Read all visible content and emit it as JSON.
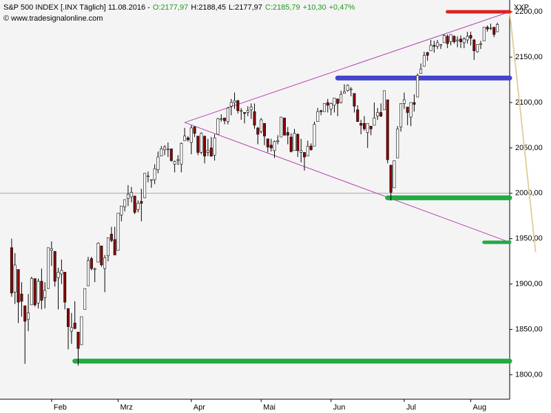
{
  "chart_data": {
    "type": "candlestick",
    "title": "S&P 500 INDEX [.INX  Täglich]",
    "date": "11.08.2016",
    "separator": "-",
    "quote": [
      {
        "text": "O:2177,97",
        "color": "#1a9a1a"
      },
      {
        "text": "H:2188,45",
        "color": "#000000"
      },
      {
        "text": "L:2177,97",
        "color": "#000000"
      },
      {
        "text": "C:2185,79",
        "color": "#1a9a1a"
      },
      {
        "text": "+10,30",
        "color": "#1a9a1a"
      },
      {
        "text": "+0,47%",
        "color": "#1a9a1a"
      }
    ],
    "source": "© www.tradesignalonline.com",
    "corner_label": "XXP",
    "up_color": "#ffffff",
    "down_color": "#8b0000",
    "xlim": [
      -3.5,
      149.7
    ],
    "ylim": [
      1773,
      2213
    ],
    "xticks": [
      {
        "value": 12,
        "label": "Feb"
      },
      {
        "value": 32,
        "label": "Mrz"
      },
      {
        "value": 54,
        "label": "Apr"
      },
      {
        "value": 75,
        "label": "Mai"
      },
      {
        "value": 96,
        "label": "Jun"
      },
      {
        "value": 118,
        "label": "Jul"
      },
      {
        "value": 138,
        "label": "Aug"
      }
    ],
    "yticks": [
      {
        "value": 1800,
        "label": "1800,00"
      },
      {
        "value": 1850,
        "label": "1850,00"
      },
      {
        "value": 1900,
        "label": "1900,00"
      },
      {
        "value": 1950,
        "label": "1950,00"
      },
      {
        "value": 2000,
        "label": "2000,00"
      },
      {
        "value": 2050,
        "label": "2050,00"
      },
      {
        "value": 2100,
        "label": "2100,00"
      },
      {
        "value": 2150,
        "label": "2150,00"
      },
      {
        "value": 2200,
        "label": "2200,00"
      }
    ],
    "ohlc": [
      [
        1940,
        1950,
        1886,
        1890
      ],
      [
        1891,
        1934,
        1878,
        1921
      ],
      [
        1916,
        1916,
        1857,
        1880
      ],
      [
        1889,
        1902,
        1864,
        1881
      ],
      [
        1876,
        1876,
        1812,
        1859
      ],
      [
        1861,
        1889,
        1848,
        1868
      ],
      [
        1877,
        1908,
        1877,
        1906
      ],
      [
        1906,
        1906,
        1875,
        1877
      ],
      [
        1879,
        1906,
        1873,
        1903
      ],
      [
        1903,
        1917,
        1872,
        1882
      ],
      [
        1885,
        1902,
        1873,
        1893
      ],
      [
        1895,
        1940,
        1895,
        1940
      ],
      [
        1937,
        1947,
        1920,
        1939
      ],
      [
        1936,
        1936,
        1897,
        1903
      ],
      [
        1907,
        1918,
        1872,
        1913
      ],
      [
        1911,
        1927,
        1900,
        1915
      ],
      [
        1913,
        1913,
        1872,
        1880
      ],
      [
        1873,
        1873,
        1828,
        1853
      ],
      [
        1848,
        1868,
        1834,
        1852
      ],
      [
        1857,
        1881,
        1850,
        1851
      ],
      [
        1847,
        1847,
        1810,
        1829
      ],
      [
        1833,
        1864,
        1833,
        1864
      ],
      [
        1872,
        1895,
        1872,
        1895
      ],
      [
        1898,
        1930,
        1898,
        1926
      ],
      [
        1928,
        1930,
        1915,
        1917
      ],
      [
        1916,
        1918,
        1902,
        1917
      ],
      [
        1924,
        1946,
        1924,
        1945
      ],
      [
        1942,
        1942,
        1919,
        1921
      ],
      [
        1917,
        1932,
        1891,
        1929
      ],
      [
        1931,
        1951,
        1925,
        1951
      ],
      [
        1955,
        1963,
        1946,
        1948
      ],
      [
        1949,
        1963,
        1932,
        1932
      ],
      [
        1937,
        1978,
        1937,
        1978
      ],
      [
        1976,
        1986,
        1969,
        1986
      ],
      [
        1985,
        1993,
        1980,
        1993
      ],
      [
        1994,
        2009,
        1986,
        1999
      ],
      [
        1996,
        2007,
        1990,
        2001
      ],
      [
        1997,
        1997,
        1977,
        1979
      ],
      [
        1982,
        1992,
        1979,
        1989
      ],
      [
        1991,
        2005,
        1969,
        1989
      ],
      [
        1995,
        2022,
        1995,
        2022
      ],
      [
        2019,
        2024,
        2012,
        2019
      ],
      [
        2015,
        2015,
        2006,
        2015
      ],
      [
        2015,
        2032,
        2010,
        2027
      ],
      [
        2026,
        2046,
        2022,
        2040
      ],
      [
        2041,
        2052,
        2041,
        2049
      ],
      [
        2048,
        2053,
        2042,
        2051
      ],
      [
        2048,
        2056,
        2040,
        2049
      ],
      [
        2049,
        2049,
        2035,
        2036
      ],
      [
        2032,
        2036,
        2023,
        2035
      ],
      [
        2037,
        2042,
        2031,
        2037
      ],
      [
        2032,
        2056,
        2023,
        2055
      ],
      [
        2058,
        2072,
        2058,
        2063
      ],
      [
        2061,
        2063,
        2057,
        2059
      ],
      [
        2056,
        2075,
        2043,
        2072
      ],
      [
        2073,
        2074,
        2062,
        2066
      ],
      [
        2063,
        2063,
        2042,
        2045
      ],
      [
        2045,
        2067,
        2043,
        2066
      ],
      [
        2063,
        2063,
        2033,
        2041
      ],
      [
        2045,
        2060,
        2041,
        2047
      ],
      [
        2050,
        2062,
        2040,
        2041
      ],
      [
        2042,
        2065,
        2036,
        2061
      ],
      [
        2065,
        2083,
        2065,
        2082
      ],
      [
        2082,
        2087,
        2079,
        2082
      ],
      [
        2083,
        2083,
        2076,
        2080
      ],
      [
        2079,
        2095,
        2076,
        2094
      ],
      [
        2096,
        2104,
        2086,
        2100
      ],
      [
        2100,
        2111,
        2093,
        2102
      ],
      [
        2102,
        2103,
        2088,
        2091
      ],
      [
        2091,
        2094,
        2081,
        2091
      ],
      [
        2089,
        2089,
        2077,
        2088
      ],
      [
        2089,
        2096,
        2085,
        2091
      ],
      [
        2092,
        2099,
        2082,
        2095
      ],
      [
        2090,
        2099,
        2071,
        2075
      ],
      [
        2072,
        2073,
        2054,
        2065
      ],
      [
        2068,
        2083,
        2066,
        2081
      ],
      [
        2077,
        2077,
        2053,
        2063
      ],
      [
        2060,
        2060,
        2045,
        2051
      ],
      [
        2053,
        2060,
        2046,
        2050
      ],
      [
        2047,
        2058,
        2039,
        2057
      ],
      [
        2057,
        2064,
        2054,
        2058
      ],
      [
        2062,
        2084,
        2062,
        2084
      ],
      [
        2083,
        2083,
        2064,
        2064
      ],
      [
        2067,
        2073,
        2054,
        2064
      ],
      [
        2062,
        2066,
        2045,
        2046
      ],
      [
        2047,
        2071,
        2047,
        2066
      ],
      [
        2065,
        2066,
        2040,
        2047
      ],
      [
        2045,
        2060,
        2034,
        2047
      ],
      [
        2045,
        2045,
        2025,
        2040
      ],
      [
        2041,
        2058,
        2041,
        2052
      ],
      [
        2052,
        2055,
        2047,
        2048
      ],
      [
        2052,
        2079,
        2052,
        2076
      ],
      [
        2079,
        2094,
        2079,
        2090
      ],
      [
        2091,
        2092,
        2086,
        2090
      ],
      [
        2090,
        2099,
        2090,
        2099
      ],
      [
        2100,
        2104,
        2089,
        2097
      ],
      [
        2093,
        2100,
        2086,
        2099
      ],
      [
        2097,
        2105,
        2089,
        2105
      ],
      [
        2104,
        2104,
        2085,
        2099
      ],
      [
        2100,
        2113,
        2099,
        2109
      ],
      [
        2110,
        2120,
        2110,
        2112
      ],
      [
        2113,
        2120,
        2112,
        2119
      ],
      [
        2115,
        2117,
        2107,
        2115
      ],
      [
        2110,
        2110,
        2089,
        2096
      ],
      [
        2092,
        2097,
        2079,
        2079
      ],
      [
        2077,
        2081,
        2065,
        2075
      ],
      [
        2077,
        2085,
        2069,
        2071
      ],
      [
        2067,
        2077,
        2050,
        2077
      ],
      [
        2074,
        2074,
        2064,
        2071
      ],
      [
        2075,
        2100,
        2075,
        2083
      ],
      [
        2085,
        2094,
        2081,
        2089
      ],
      [
        2089,
        2099,
        2084,
        2085
      ],
      [
        2092,
        2113,
        2092,
        2113
      ],
      [
        2103,
        2103,
        2033,
        2037
      ],
      [
        2031,
        2031,
        1992,
        2001
      ],
      [
        2006,
        2036,
        2006,
        2036
      ],
      [
        2039,
        2074,
        2039,
        2071
      ],
      [
        2073,
        2099,
        2068,
        2099
      ],
      [
        2099,
        2111,
        2093,
        2103
      ],
      [
        2095,
        2095,
        2075,
        2089
      ],
      [
        2084,
        2100,
        2074,
        2100
      ],
      [
        2100,
        2109,
        2090,
        2098
      ],
      [
        2106,
        2132,
        2106,
        2130
      ],
      [
        2132,
        2143,
        2132,
        2137
      ],
      [
        2140,
        2156,
        2140,
        2152
      ],
      [
        2155,
        2156,
        2146,
        2152
      ],
      [
        2157,
        2169,
        2157,
        2163
      ],
      [
        2163,
        2168,
        2155,
        2162
      ],
      [
        2162,
        2169,
        2159,
        2166
      ],
      [
        2163,
        2164,
        2159,
        2164
      ],
      [
        2166,
        2175,
        2166,
        2174
      ],
      [
        2173,
        2175,
        2160,
        2165
      ],
      [
        2167,
        2175,
        2163,
        2175
      ],
      [
        2173,
        2174,
        2165,
        2167
      ],
      [
        2168,
        2173,
        2161,
        2169
      ],
      [
        2170,
        2174,
        2160,
        2167
      ],
      [
        2166,
        2172,
        2160,
        2170
      ],
      [
        2169,
        2178,
        2165,
        2173
      ],
      [
        2174,
        2178,
        2163,
        2171
      ],
      [
        2169,
        2170,
        2147,
        2157
      ],
      [
        2156,
        2164,
        2155,
        2164
      ],
      [
        2164,
        2168,
        2159,
        2165
      ],
      [
        2168,
        2183,
        2168,
        2183
      ],
      [
        2183,
        2185,
        2178,
        2181
      ],
      [
        2182,
        2187,
        2180,
        2182
      ],
      [
        2183,
        2183,
        2172,
        2175
      ],
      [
        2178,
        2188,
        2178,
        2186
      ]
    ],
    "drawings": [
      {
        "color": "#9aa89a",
        "width": 1,
        "x": [
          -3.5,
          149.7
        ],
        "y": [
          2000,
          2000
        ]
      },
      {
        "color": "#b040b0",
        "width": 1,
        "x": [
          52,
          149.7
        ],
        "y": [
          2078,
          2200
        ]
      },
      {
        "color": "#b040b0",
        "width": 1,
        "x": [
          52,
          149.7
        ],
        "y": [
          2078,
          1946
        ]
      },
      {
        "color": "#e0d0a0",
        "width": 2,
        "x": [
          149.7,
          157.5
        ],
        "y": [
          2200,
          1935
        ]
      },
      {
        "color": "#dd2222",
        "width": 5,
        "x": [
          131,
          149.7
        ],
        "y": [
          2200,
          2200
        ]
      },
      {
        "color": "#4444cc",
        "width": 7,
        "x": [
          98,
          149.7
        ],
        "y": [
          2127,
          2127
        ]
      },
      {
        "color": "#22aa44",
        "width": 7,
        "x": [
          113,
          149.7
        ],
        "y": [
          1995,
          1995
        ]
      },
      {
        "color": "#22aa44",
        "width": 5,
        "x": [
          142,
          149.7
        ],
        "y": [
          1946,
          1946
        ]
      },
      {
        "color": "#22aa44",
        "width": 7,
        "x": [
          19,
          149.7
        ],
        "y": [
          1815,
          1815
        ]
      }
    ]
  }
}
